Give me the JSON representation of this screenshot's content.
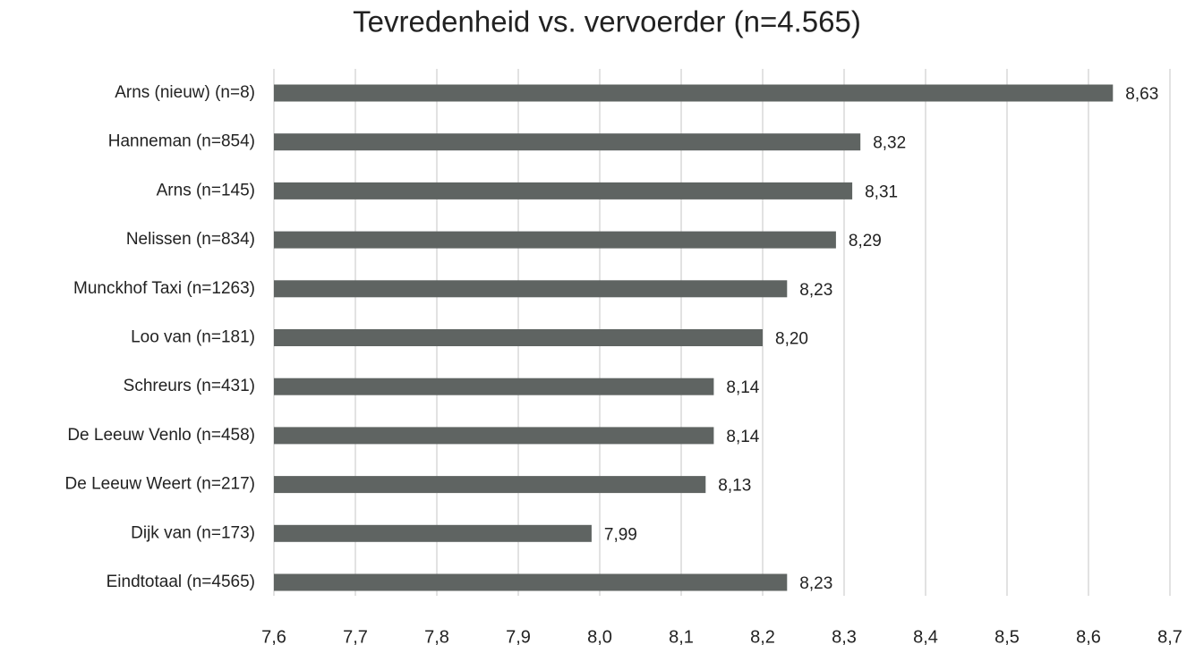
{
  "chart_data": {
    "type": "barh",
    "title": "Tevredenheid vs. vervoerder (n=4.565)",
    "categories": [
      "Arns (nieuw) (n=8)",
      "Hanneman (n=854)",
      "Arns (n=145)",
      "Nelissen (n=834)",
      "Munckhof Taxi (n=1263)",
      "Loo van (n=181)",
      "Schreurs (n=431)",
      "De Leeuw Venlo (n=458)",
      "De Leeuw Weert (n=217)",
      "Dijk van (n=173)",
      "Eindtotaal (n=4565)"
    ],
    "values": [
      8.63,
      8.32,
      8.31,
      8.29,
      8.23,
      8.2,
      8.14,
      8.14,
      8.13,
      7.99,
      8.23
    ],
    "value_labels": [
      "8,63",
      "8,32",
      "8,31",
      "8,29",
      "8,23",
      "8,20",
      "8,14",
      "8,14",
      "8,13",
      "7,99",
      "8,23"
    ],
    "color": "#5f6462",
    "xlim": [
      7.6,
      8.7
    ],
    "xticks": [
      {
        "value": 7.6,
        "label": "7,6"
      },
      {
        "value": 7.7,
        "label": "7,7"
      },
      {
        "value": 7.8,
        "label": "7,8"
      },
      {
        "value": 7.9,
        "label": "7,9"
      },
      {
        "value": 8.0,
        "label": "8,0"
      },
      {
        "value": 8.1,
        "label": "8,1"
      },
      {
        "value": 8.2,
        "label": "8,2"
      },
      {
        "value": 8.3,
        "label": "8,3"
      },
      {
        "value": 8.4,
        "label": "8,4"
      },
      {
        "value": 8.5,
        "label": "8,5"
      },
      {
        "value": 8.6,
        "label": "8,6"
      },
      {
        "value": 8.7,
        "label": "8,7"
      }
    ],
    "grid": true
  }
}
